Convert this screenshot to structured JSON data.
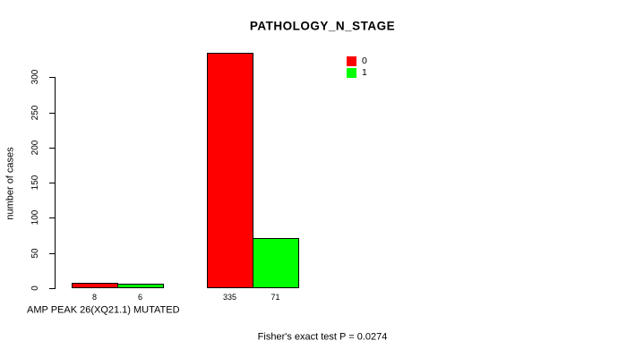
{
  "chart_data": {
    "type": "bar",
    "title": "PATHOLOGY_N_STAGE",
    "ylabel": "number of cases",
    "xlabel": "AMP PEAK 26(XQ21.1) MUTATED",
    "footer": "Fisher's exact test P = 0.0274",
    "categories": [
      "",
      ""
    ],
    "series": [
      {
        "name": "0",
        "color": "#ff0000",
        "values": [
          8,
          335
        ]
      },
      {
        "name": "1",
        "color": "#00ff00",
        "values": [
          6,
          71
        ]
      }
    ],
    "bar_value_labels": [
      [
        "8",
        "335"
      ],
      [
        "6",
        "71"
      ]
    ],
    "yticks": [
      0,
      50,
      100,
      150,
      200,
      250,
      300
    ],
    "ylim": [
      0,
      335
    ],
    "grid": false,
    "legend_position": "top-right",
    "bar_border_color": "#000000",
    "axis_color": "#000000",
    "background_color": "#ffffff",
    "text_color": "#000000"
  }
}
